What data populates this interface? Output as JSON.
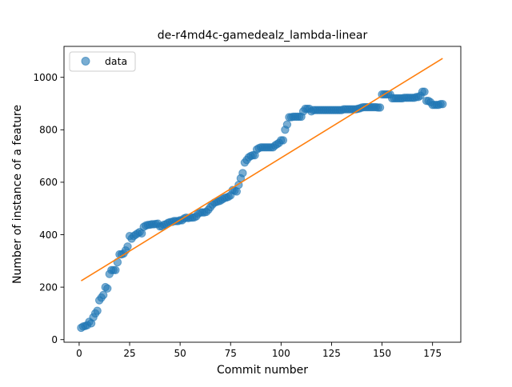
{
  "chart_data": {
    "type": "scatter",
    "title": "de-r4md4c-gamedealz_lambda-linear",
    "xlabel": "Commit number",
    "ylabel": "Number of instance of a feature",
    "xlim": [
      -7.5,
      189
    ],
    "ylim": [
      -10,
      1118
    ],
    "xticks": [
      0,
      25,
      50,
      75,
      100,
      125,
      150,
      175
    ],
    "yticks": [
      0,
      200,
      400,
      600,
      800,
      1000
    ],
    "grid": false,
    "legend": {
      "placement": "top-left",
      "entries": [
        "data"
      ]
    },
    "colors": {
      "data": "#1f77b4",
      "fit": "#ff7f0e"
    },
    "series": [
      {
        "name": "data",
        "kind": "scatter",
        "points": [
          [
            1,
            45
          ],
          [
            2,
            50
          ],
          [
            3,
            52
          ],
          [
            4,
            55
          ],
          [
            5,
            68
          ],
          [
            6,
            62
          ],
          [
            7,
            85
          ],
          [
            8,
            100
          ],
          [
            9,
            110
          ],
          [
            10,
            150
          ],
          [
            11,
            160
          ],
          [
            12,
            170
          ],
          [
            13,
            200
          ],
          [
            14,
            195
          ],
          [
            15,
            250
          ],
          [
            16,
            265
          ],
          [
            17,
            265
          ],
          [
            18,
            265
          ],
          [
            19,
            295
          ],
          [
            20,
            325
          ],
          [
            21,
            325
          ],
          [
            22,
            328
          ],
          [
            23,
            340
          ],
          [
            24,
            355
          ],
          [
            25,
            395
          ],
          [
            26,
            385
          ],
          [
            27,
            395
          ],
          [
            28,
            400
          ],
          [
            29,
            405
          ],
          [
            30,
            410
          ],
          [
            31,
            405
          ],
          [
            32,
            430
          ],
          [
            33,
            435
          ],
          [
            34,
            437
          ],
          [
            35,
            438
          ],
          [
            36,
            440
          ],
          [
            37,
            440
          ],
          [
            38,
            441
          ],
          [
            39,
            442
          ],
          [
            40,
            432
          ],
          [
            41,
            432
          ],
          [
            42,
            438
          ],
          [
            43,
            440
          ],
          [
            44,
            445
          ],
          [
            45,
            448
          ],
          [
            46,
            449
          ],
          [
            47,
            452
          ],
          [
            48,
            452
          ],
          [
            49,
            452
          ],
          [
            50,
            455
          ],
          [
            51,
            455
          ],
          [
            52,
            462
          ],
          [
            53,
            465
          ],
          [
            54,
            463
          ],
          [
            55,
            465
          ],
          [
            56,
            465
          ],
          [
            57,
            466
          ],
          [
            58,
            470
          ],
          [
            59,
            480
          ],
          [
            60,
            485
          ],
          [
            61,
            485
          ],
          [
            62,
            485
          ],
          [
            63,
            487
          ],
          [
            64,
            495
          ],
          [
            65,
            505
          ],
          [
            66,
            515
          ],
          [
            67,
            522
          ],
          [
            68,
            525
          ],
          [
            69,
            527
          ],
          [
            70,
            530
          ],
          [
            71,
            535
          ],
          [
            72,
            540
          ],
          [
            73,
            542
          ],
          [
            74,
            545
          ],
          [
            75,
            550
          ],
          [
            76,
            570
          ],
          [
            77,
            568
          ],
          [
            78,
            565
          ],
          [
            79,
            590
          ],
          [
            80,
            615
          ],
          [
            81,
            635
          ],
          [
            82,
            675
          ],
          [
            83,
            685
          ],
          [
            84,
            695
          ],
          [
            85,
            700
          ],
          [
            86,
            703
          ],
          [
            87,
            703
          ],
          [
            88,
            725
          ],
          [
            89,
            730
          ],
          [
            90,
            733
          ],
          [
            91,
            733
          ],
          [
            92,
            733
          ],
          [
            93,
            733
          ],
          [
            94,
            733
          ],
          [
            95,
            733
          ],
          [
            96,
            733
          ],
          [
            97,
            740
          ],
          [
            98,
            745
          ],
          [
            99,
            750
          ],
          [
            100,
            760
          ],
          [
            101,
            760
          ],
          [
            102,
            800
          ],
          [
            103,
            820
          ],
          [
            104,
            848
          ],
          [
            105,
            848
          ],
          [
            106,
            850
          ],
          [
            107,
            850
          ],
          [
            108,
            850
          ],
          [
            109,
            850
          ],
          [
            110,
            850
          ],
          [
            111,
            870
          ],
          [
            112,
            880
          ],
          [
            113,
            880
          ],
          [
            114,
            880
          ],
          [
            115,
            870
          ],
          [
            116,
            875
          ],
          [
            117,
            875
          ],
          [
            118,
            875
          ],
          [
            119,
            875
          ],
          [
            120,
            875
          ],
          [
            121,
            875
          ],
          [
            122,
            875
          ],
          [
            123,
            875
          ],
          [
            124,
            875
          ],
          [
            125,
            875
          ],
          [
            126,
            875
          ],
          [
            127,
            875
          ],
          [
            128,
            875
          ],
          [
            129,
            875
          ],
          [
            130,
            875
          ],
          [
            131,
            878
          ],
          [
            132,
            878
          ],
          [
            133,
            878
          ],
          [
            134,
            878
          ],
          [
            135,
            878
          ],
          [
            136,
            878
          ],
          [
            137,
            878
          ],
          [
            138,
            880
          ],
          [
            139,
            882
          ],
          [
            140,
            885
          ],
          [
            141,
            886
          ],
          [
            142,
            886
          ],
          [
            143,
            886
          ],
          [
            144,
            886
          ],
          [
            145,
            886
          ],
          [
            146,
            886
          ],
          [
            147,
            886
          ],
          [
            148,
            885
          ],
          [
            149,
            885
          ],
          [
            150,
            935
          ],
          [
            151,
            935
          ],
          [
            152,
            935
          ],
          [
            153,
            935
          ],
          [
            154,
            935
          ],
          [
            155,
            920
          ],
          [
            156,
            920
          ],
          [
            157,
            920
          ],
          [
            158,
            920
          ],
          [
            159,
            920
          ],
          [
            160,
            920
          ],
          [
            161,
            922
          ],
          [
            162,
            922
          ],
          [
            163,
            922
          ],
          [
            164,
            922
          ],
          [
            165,
            922
          ],
          [
            166,
            922
          ],
          [
            167,
            925
          ],
          [
            168,
            925
          ],
          [
            169,
            930
          ],
          [
            170,
            945
          ],
          [
            171,
            945
          ],
          [
            172,
            910
          ],
          [
            173,
            910
          ],
          [
            174,
            905
          ],
          [
            175,
            895
          ],
          [
            176,
            895
          ],
          [
            177,
            895
          ],
          [
            178,
            895
          ],
          [
            179,
            898
          ],
          [
            180,
            898
          ]
        ]
      },
      {
        "name": "",
        "kind": "line",
        "points": [
          [
            1,
            224
          ],
          [
            180,
            1072
          ]
        ]
      }
    ]
  }
}
